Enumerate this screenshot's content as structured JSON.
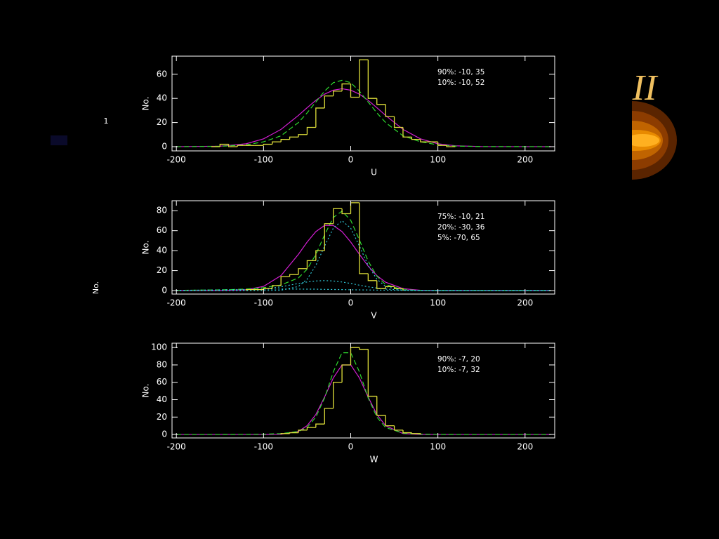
{
  "slide": {
    "heading": "II",
    "page_mark": "1",
    "side_label": "No."
  },
  "chart_data": [
    {
      "type": "histogram",
      "xlabel": "U",
      "ylabel": "No.",
      "annotations": [
        "90%: -10, 35",
        "10%: -10, 52"
      ],
      "bins": [
        -160,
        -150,
        -140,
        -130,
        -120,
        -110,
        -100,
        -90,
        -80,
        -70,
        -60,
        -50,
        -40,
        -30,
        -20,
        -10,
        0,
        10,
        20,
        30,
        40,
        50,
        60,
        70,
        80,
        90,
        100,
        110,
        120
      ],
      "counts": [
        0,
        2,
        0,
        1,
        1,
        1,
        2,
        4,
        6,
        8,
        10,
        16,
        32,
        42,
        46,
        52,
        41,
        72,
        40,
        35,
        25,
        16,
        8,
        6,
        4,
        4,
        1,
        0
      ],
      "color": "#dede3a",
      "curves": {
        "x": [
          -200,
          -150,
          -120,
          -100,
          -80,
          -60,
          -50,
          -40,
          -30,
          -20,
          -10,
          0,
          10,
          20,
          30,
          40,
          60,
          80,
          100,
          120,
          150,
          230
        ],
        "series": [
          {
            "color": "#d21ed2",
            "dash": "solid",
            "values": [
              0,
              0.4,
              2.4,
              6.5,
              14.3,
              25.9,
              32.3,
              38.4,
              43.5,
              46.8,
              48,
              46.8,
              43.5,
              38.4,
              32.3,
              25.9,
              14.3,
              6.5,
              2.4,
              0.7,
              0.1,
              0
            ]
          },
          {
            "color": "#2ed82e",
            "dash": "dashed",
            "values": [
              0,
              0.3,
              1.5,
              4,
              9,
              20,
              28,
              37,
              46,
              53,
              55,
              53,
              46,
              37,
              28,
              20,
              9,
              4,
              1.5,
              0.5,
              0.1,
              0
            ]
          }
        ]
      },
      "xlim": [
        -205,
        234
      ],
      "ylim": [
        -3.5,
        75
      ],
      "xticks": [
        -200,
        -100,
        0,
        100,
        200
      ],
      "yticks": [
        0,
        20,
        40,
        60
      ]
    },
    {
      "type": "histogram",
      "xlabel": "V",
      "ylabel": "No.",
      "annotations": [
        "75%: -10, 21",
        "20%: -30, 36",
        "5%: -70, 65"
      ],
      "bins": [
        -120,
        -110,
        -100,
        -90,
        -80,
        -70,
        -60,
        -50,
        -40,
        -30,
        -20,
        -10,
        0,
        10,
        20,
        30,
        40,
        50,
        60
      ],
      "counts": [
        1,
        1,
        2,
        5,
        14,
        16,
        22,
        30,
        40,
        67,
        82,
        77,
        88,
        17,
        10,
        2,
        4,
        2
      ],
      "color": "#dede3a",
      "curves": {
        "x": [
          -200,
          -150,
          -120,
          -100,
          -80,
          -60,
          -50,
          -40,
          -30,
          -20,
          -10,
          0,
          10,
          20,
          30,
          40,
          60,
          80,
          100,
          120,
          150,
          230
        ],
        "series": [
          {
            "color": "#d21ed2",
            "dash": "solid",
            "values": [
              0,
              0,
              0.8,
              4.2,
              15,
              36.3,
              48.6,
              59.1,
              65.2,
              65.2,
              59.1,
              48.6,
              36.3,
              24.5,
              15,
              8.4,
              1.9,
              0.3,
              0,
              0,
              0,
              0
            ]
          },
          {
            "color": "#2ed82e",
            "dash": "dashed",
            "values": [
              0.2,
              0.7,
              1.5,
              2.9,
              5.6,
              12.7,
              21.4,
              36.2,
              55.7,
              73.2,
              79.6,
              70.4,
              50.6,
              29.6,
              14.4,
              6,
              0.9,
              0.2,
              0,
              0,
              0,
              0
            ]
          },
          {
            "color": "#30c8d8",
            "dash": "dotted",
            "values": [
              0,
              0,
              0,
              0,
              0.3,
              4.1,
              11.4,
              25.2,
              44.5,
              62.5,
              70,
              62.5,
              44.5,
              25.2,
              11.4,
              4.1,
              0.3,
              0,
              0,
              0,
              0,
              0
            ]
          },
          {
            "color": "#30c8d8",
            "dash": "dotted",
            "values": [
              0,
              0,
              0.4,
              1.5,
              3.8,
              7.1,
              8.6,
              9.6,
              10,
              9.6,
              8.6,
              7.1,
              5.4,
              3.8,
              2.5,
              1.5,
              0.4,
              0.1,
              0,
              0,
              0,
              0
            ]
          },
          {
            "color": "#30c8d8",
            "dash": "dotted",
            "values": [
              0.2,
              0.7,
              1.1,
              1.4,
              1.5,
              1.5,
              1.4,
              1.4,
              1.2,
              1.1,
              1,
              0.8,
              0.7,
              0.6,
              0.5,
              0.4,
              0.2,
              0.1,
              0,
              0,
              0,
              0
            ]
          }
        ]
      },
      "xlim": [
        -205,
        234
      ],
      "ylim": [
        -3.5,
        90
      ],
      "xticks": [
        -200,
        -100,
        0,
        100,
        200
      ],
      "yticks": [
        0,
        20,
        40,
        60,
        80
      ]
    },
    {
      "type": "histogram",
      "xlabel": "W",
      "ylabel": "No.",
      "annotations": [
        "90%: -7, 20",
        "10%: -7, 32"
      ],
      "bins": [
        -80,
        -70,
        -60,
        -50,
        -40,
        -30,
        -20,
        -10,
        0,
        10,
        20,
        30,
        40,
        50,
        60,
        70,
        80
      ],
      "counts": [
        1,
        2,
        5,
        8,
        12,
        30,
        60,
        80,
        100,
        98,
        44,
        22,
        10,
        5,
        2,
        1
      ],
      "color": "#dede3a",
      "curves": {
        "x": [
          -200,
          -150,
          -120,
          -100,
          -80,
          -60,
          -50,
          -40,
          -30,
          -20,
          -10,
          0,
          10,
          20,
          30,
          40,
          60,
          80,
          100,
          120,
          150,
          230
        ],
        "series": [
          {
            "color": "#d21ed2",
            "dash": "solid",
            "values": [
              0,
              0,
              0,
              0,
              0.2,
              3.6,
              10.1,
              23,
              43,
              65,
              80,
              80,
              65,
              43,
              23,
              10.1,
              1,
              0,
              0,
              0,
              0,
              0
            ]
          },
          {
            "color": "#2ed82e",
            "dash": "dashed",
            "values": [
              0,
              0,
              0.1,
              0.3,
              1,
              3.5,
              8,
              20,
              42,
              72,
              94,
              94,
              72,
              42,
              20,
              8,
              1.5,
              0.4,
              0.1,
              0,
              0,
              0
            ]
          }
        ]
      },
      "xlim": [
        -205,
        234
      ],
      "ylim": [
        -4,
        105
      ],
      "xticks": [
        -200,
        -100,
        0,
        100,
        200
      ],
      "yticks": [
        0,
        20,
        40,
        60,
        80,
        100
      ]
    }
  ]
}
